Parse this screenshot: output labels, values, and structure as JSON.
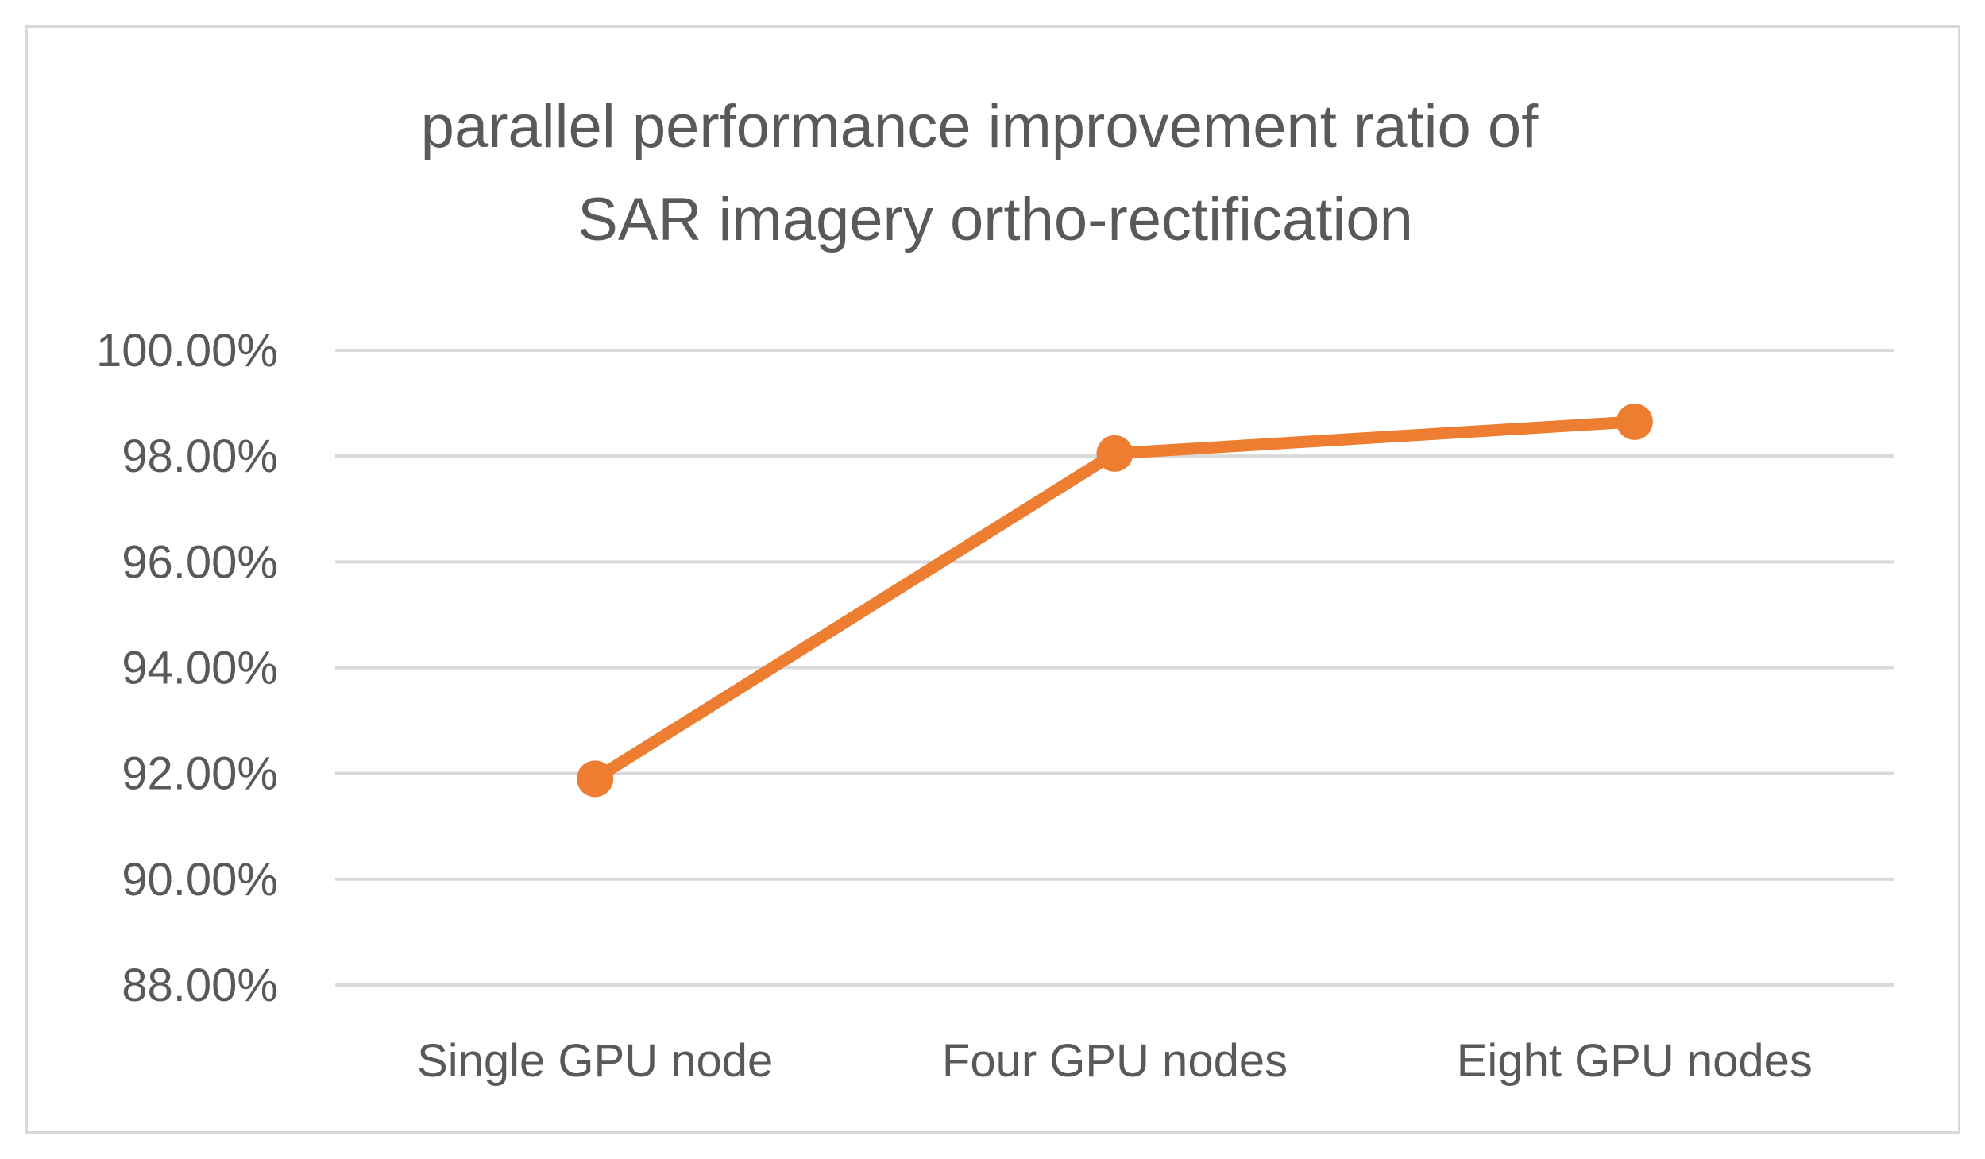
{
  "chart_data": {
    "type": "line",
    "title": "parallel performance improvement ratio of SAR imagery ortho-rectification",
    "title_lines": [
      "parallel performance improvement ratio of",
      "SAR imagery ortho-rectification"
    ],
    "categories": [
      "Single GPU node",
      "Four GPU nodes",
      "Eight GPU nodes"
    ],
    "series": [
      {
        "name": "parallel performance improvement ratio",
        "values": [
          91.9,
          98.05,
          98.65
        ],
        "color": "#ed7d31"
      }
    ],
    "ylim": [
      88,
      100
    ],
    "yticks": [
      88,
      90,
      92,
      94,
      96,
      98,
      100
    ],
    "ytick_labels": [
      "88.00%",
      "90.00%",
      "92.00%",
      "94.00%",
      "96.00%",
      "98.00%",
      "100.00%"
    ],
    "xlabel": "",
    "ylabel": "",
    "grid": true,
    "legend": "none"
  }
}
